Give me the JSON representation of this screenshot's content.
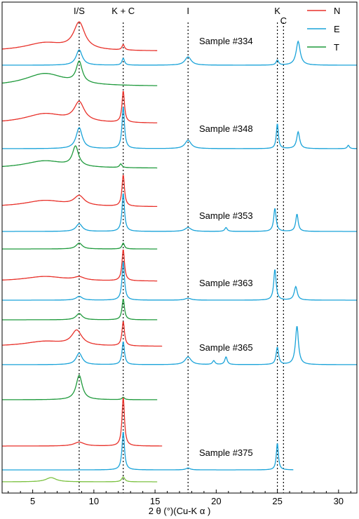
{
  "chart_data": {
    "type": "line",
    "title": "",
    "xlabel": "2 θ (°)(Cu-K α )",
    "ylabel": "",
    "xlim": [
      2.5,
      31.5
    ],
    "x_ticks": [
      5,
      10,
      15,
      20,
      25,
      30
    ],
    "grid": false,
    "legend": {
      "placement": "top-right",
      "entries": [
        {
          "name": "N",
          "color": "#e8312a"
        },
        {
          "name": "E",
          "color": "#1aa3d9"
        },
        {
          "name": "T",
          "color": "#1f9a3c"
        }
      ]
    },
    "peak_markers": [
      {
        "label": "I/S",
        "x": 8.8
      },
      {
        "label": "K + C",
        "x": 12.4
      },
      {
        "label": "I",
        "x": 17.7
      },
      {
        "label": "K",
        "x": 25.0
      },
      {
        "label": "C",
        "x": 25.5
      }
    ],
    "series_colors": {
      "N": "#e8312a",
      "E": "#1aa3d9",
      "T": "#1f9a3c",
      "T375": "#7cc242"
    },
    "samples": [
      {
        "label": "Sample #334",
        "traces": [
          {
            "name": "N",
            "x_end": 15.2,
            "peaks": [
              [
                8.8,
                1.0,
                0.55
              ],
              [
                12.4,
                0.2,
                0.12
              ],
              [
                6.0,
                0.3,
                2.0
              ]
            ]
          },
          {
            "name": "E",
            "x_end": 31.5,
            "peaks": [
              [
                8.8,
                0.55,
                0.3
              ],
              [
                12.4,
                0.25,
                0.12
              ],
              [
                17.7,
                0.3,
                0.3
              ],
              [
                25.0,
                0.18,
                0.12
              ],
              [
                26.7,
                0.85,
                0.2
              ]
            ]
          },
          {
            "name": "T",
            "x_end": 15.2,
            "peaks": [
              [
                8.8,
                1.0,
                0.3
              ],
              [
                6.0,
                0.6,
                2.0
              ]
            ]
          }
        ]
      },
      {
        "label": "Sample #348",
        "traces": [
          {
            "name": "N",
            "x_end": 15.2,
            "peaks": [
              [
                8.8,
                0.6,
                0.5
              ],
              [
                12.4,
                1.0,
                0.12
              ],
              [
                6.0,
                0.3,
                2.0
              ]
            ]
          },
          {
            "name": "E",
            "x_end": 31.5,
            "peaks": [
              [
                8.8,
                0.5,
                0.3
              ],
              [
                12.4,
                1.0,
                0.12
              ],
              [
                17.7,
                0.2,
                0.3
              ],
              [
                25.0,
                0.6,
                0.1
              ],
              [
                26.7,
                0.4,
                0.15
              ],
              [
                30.8,
                0.08,
                0.1
              ]
            ]
          },
          {
            "name": "T",
            "x_end": 15.2,
            "peaks": [
              [
                8.5,
                0.8,
                0.3
              ],
              [
                12.2,
                0.15,
                0.12
              ],
              [
                6.0,
                0.3,
                2.0
              ]
            ]
          }
        ]
      },
      {
        "label": "Sample #353",
        "traces": [
          {
            "name": "N",
            "x_end": 15.2,
            "peaks": [
              [
                8.8,
                0.3,
                0.5
              ],
              [
                12.4,
                1.0,
                0.12
              ],
              [
                6.0,
                0.2,
                2.0
              ]
            ]
          },
          {
            "name": "E",
            "x_end": 31.5,
            "peaks": [
              [
                8.8,
                0.2,
                0.3
              ],
              [
                12.4,
                1.0,
                0.12
              ],
              [
                17.7,
                0.1,
                0.3
              ],
              [
                20.8,
                0.1,
                0.12
              ],
              [
                24.8,
                0.6,
                0.12
              ],
              [
                26.6,
                0.45,
                0.12
              ]
            ]
          },
          {
            "name": "T",
            "x_end": 15.2,
            "peaks": [
              [
                8.8,
                0.6,
                0.3
              ],
              [
                12.4,
                0.6,
                0.12
              ]
            ]
          }
        ]
      },
      {
        "label": "Sample #363",
        "traces": [
          {
            "name": "N",
            "x_end": 15.2,
            "peaks": [
              [
                8.8,
                0.1,
                0.5
              ],
              [
                12.4,
                1.0,
                0.12
              ],
              [
                6.0,
                0.15,
                2.0
              ]
            ]
          },
          {
            "name": "E",
            "x_end": 31.5,
            "peaks": [
              [
                8.8,
                0.1,
                0.3
              ],
              [
                12.4,
                1.0,
                0.12
              ],
              [
                17.7,
                0.05,
                0.3
              ],
              [
                24.8,
                0.8,
                0.12
              ],
              [
                26.5,
                0.35,
                0.15
              ]
            ]
          },
          {
            "name": "T",
            "x_end": 15.2,
            "peaks": [
              [
                8.8,
                0.3,
                0.3
              ],
              [
                12.4,
                1.0,
                0.12
              ]
            ]
          }
        ]
      },
      {
        "label": "Sample #365",
        "traces": [
          {
            "name": "N",
            "x_end": 15.6,
            "peaks": [
              [
                8.6,
                0.6,
                0.5
              ],
              [
                12.4,
                1.0,
                0.12
              ],
              [
                6.0,
                0.2,
                2.0
              ]
            ]
          },
          {
            "name": "E",
            "x_end": 31.5,
            "peaks": [
              [
                8.8,
                0.3,
                0.3
              ],
              [
                12.4,
                0.6,
                0.12
              ],
              [
                17.7,
                0.2,
                0.3
              ],
              [
                19.8,
                0.1,
                0.12
              ],
              [
                20.8,
                0.2,
                0.12
              ],
              [
                25.0,
                0.45,
                0.12
              ],
              [
                26.6,
                1.0,
                0.15
              ]
            ]
          },
          {
            "name": "T",
            "x_end": 15.2,
            "peaks": [
              [
                8.8,
                1.0,
                0.3
              ],
              [
                12.4,
                0.1,
                0.12
              ]
            ]
          }
        ]
      },
      {
        "label": "Sample #375",
        "traces": [
          {
            "name": "N",
            "x_end": 15.6,
            "peaks": [
              [
                8.8,
                0.08,
                0.5
              ],
              [
                12.4,
                1.0,
                0.12
              ]
            ]
          },
          {
            "name": "E",
            "x_end": 26.3,
            "peaks": [
              [
                12.4,
                1.0,
                0.12
              ],
              [
                17.7,
                0.05,
                0.2
              ],
              [
                25.0,
                0.7,
                0.1
              ]
            ]
          },
          {
            "name": "T375",
            "x_end": 15.2,
            "peaks": [
              [
                6.5,
                0.6,
                0.5
              ],
              [
                12.4,
                0.7,
                0.15
              ]
            ]
          }
        ]
      }
    ]
  }
}
